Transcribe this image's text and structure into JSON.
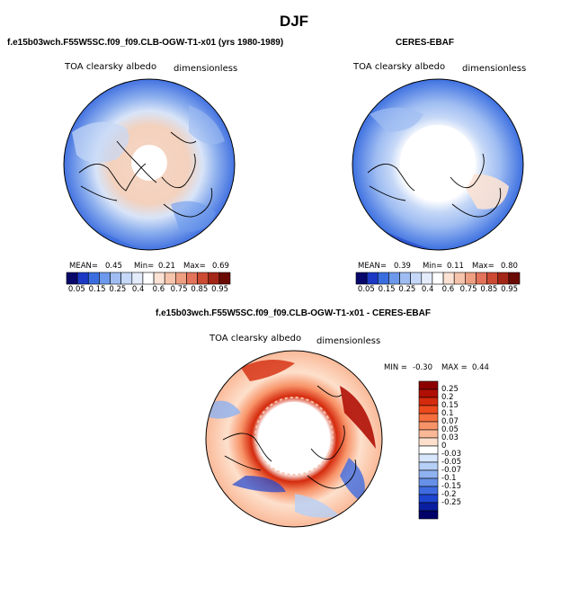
{
  "title": "DJF",
  "top_left": {
    "heading": "f.e15b03wch.F55W5SC.f09_f09.CLB-OGW-T1-x01 (yrs 1980-1989)",
    "variable": "TOA clearsky albedo",
    "units": "dimensionless",
    "mean_label": "MEAN=",
    "mean": "0.45",
    "min_label": "Min=",
    "min": "0.21",
    "max_label": "Max=",
    "max": "0.69"
  },
  "top_right": {
    "heading": "CERES-EBAF",
    "variable": "TOA clearsky albedo",
    "units": "dimensionless",
    "mean_label": "MEAN=",
    "mean": "0.39",
    "min_label": "Min=",
    "min": "0.11",
    "max_label": "Max=",
    "max": "0.80"
  },
  "bottom": {
    "heading": "f.e15b03wch.F55W5SC.f09_f09.CLB-OGW-T1-x01 - CERES-EBAF",
    "variable": "TOA clearsky albedo",
    "units": "dimensionless",
    "min_label": "MIN =",
    "min": "-0.30",
    "max_label": "MAX =",
    "max": "0.44"
  },
  "albedo_colorbar": {
    "ticks": [
      "0.05",
      "0.15",
      "0.25",
      "0.4",
      "0.6",
      "0.75",
      "0.85",
      "0.95"
    ],
    "colors": [
      "#08086b",
      "#1b39c4",
      "#3a6ee0",
      "#6d99ec",
      "#9fbdf2",
      "#c6d8f7",
      "#e4ecfb",
      "#ffffff",
      "#fbe2d4",
      "#f6c4ac",
      "#ee9f82",
      "#e3735a",
      "#cc4a32",
      "#a42617",
      "#6b0a04"
    ]
  },
  "diff_colorbar": {
    "ticks": [
      "0.25",
      "0.2",
      "0.15",
      "0.1",
      "0.07",
      "0.05",
      "0.03",
      "0",
      "-0.03",
      "-0.05",
      "-0.07",
      "-0.1",
      "-0.15",
      "-0.2",
      "-0.25"
    ],
    "colors": [
      "#8c0000",
      "#b00f05",
      "#d42a0d",
      "#ec4a1d",
      "#f56e3d",
      "#f89368",
      "#fab897",
      "#fde0cc",
      "#ffffff",
      "#d8e6fb",
      "#b6cff6",
      "#8fb2f0",
      "#6791e8",
      "#3e6ce0",
      "#1d45d0",
      "#0a1fa0",
      "#000068"
    ]
  }
}
